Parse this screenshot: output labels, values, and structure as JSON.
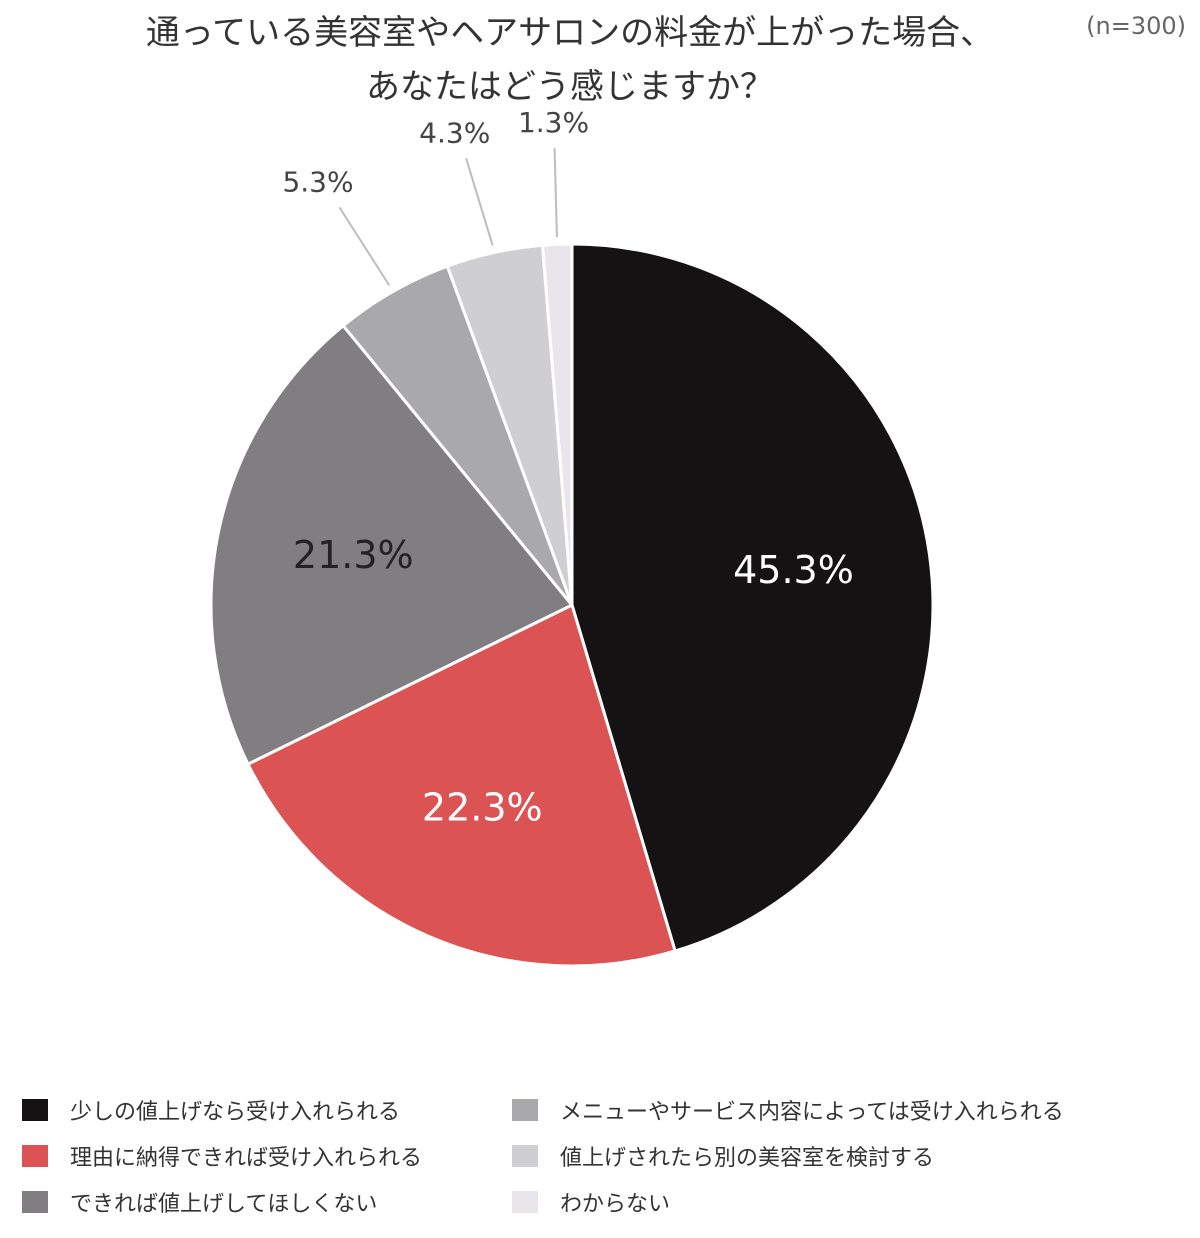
{
  "header": {
    "title_line1": "通っている美容室やヘアサロンの料金が上がった場合、",
    "title_line2": "あなたはどう感じますか？",
    "sample_size": "(n=300)"
  },
  "chart_data": {
    "type": "pie",
    "title": "通っている美容室やヘアサロンの料金が上がった場合、あなたはどう感じますか？",
    "start": "top",
    "direction": "clockwise",
    "legend_placement": "bottom",
    "slices": [
      {
        "name": "少しの値上げなら受け入れられる",
        "value": 45.3,
        "label": "45.3%",
        "color": "#141213",
        "label_color": "#ffffff",
        "label_position": "inside"
      },
      {
        "name": "理由に納得できれば受け入れられる",
        "value": 22.3,
        "label": "22.3%",
        "color": "#dc5353",
        "label_color": "#ffffff",
        "label_position": "inside"
      },
      {
        "name": "できれば値上げしてほしくない",
        "value": 21.3,
        "label": "21.3%",
        "color": "#807e80",
        "label_color": "#222222",
        "label_position": "inside"
      },
      {
        "name": "メニューやサービス内容によっては受け入れられる",
        "value": 5.3,
        "label": "5.3%",
        "color": "#a9a8aa",
        "label_color": "#444444",
        "label_position": "outside"
      },
      {
        "name": "値上げされたら別の美容室を検討する",
        "value": 4.3,
        "label": "4.3%",
        "color": "#cfced1",
        "label_color": "#444444",
        "label_position": "outside"
      },
      {
        "name": "わからない",
        "value": 1.3,
        "label": "1.3%",
        "color": "#e8e6ea",
        "label_color": "#444444",
        "label_position": "outside"
      }
    ]
  }
}
